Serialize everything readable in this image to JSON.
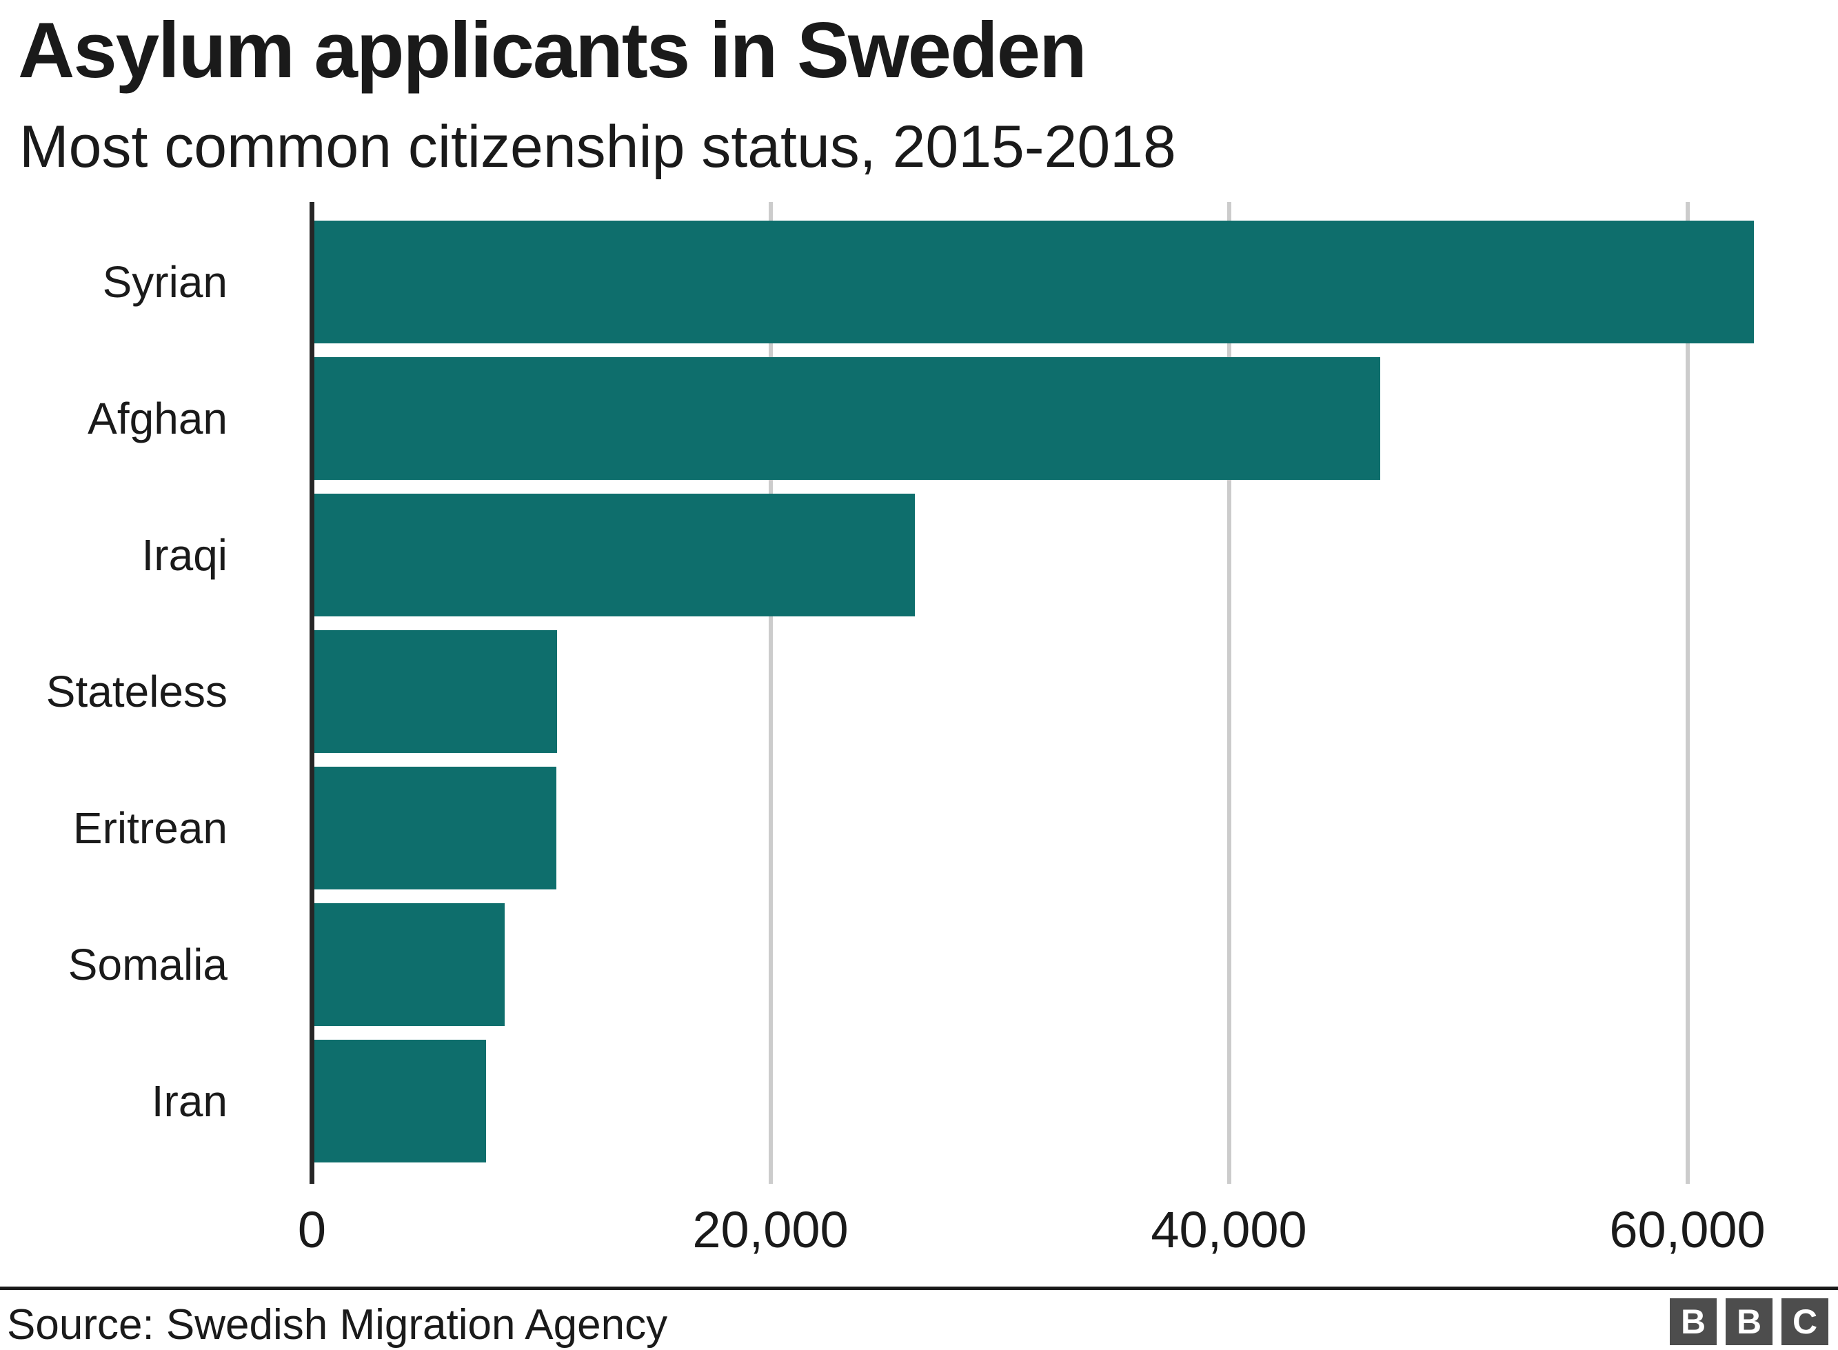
{
  "header": {
    "title": "Asylum applicants in Sweden",
    "subtitle": "Most common citizenship status, 2015-2018"
  },
  "chart_data": {
    "type": "bar",
    "orientation": "horizontal",
    "title": "Asylum applicants in Sweden",
    "subtitle": "Most common citizenship status, 2015-2018",
    "categories": [
      "Syrian",
      "Afghan",
      "Iraqi",
      "Stateless",
      "Eritrean",
      "Somalia",
      "Iran"
    ],
    "values": [
      62800,
      46500,
      26200,
      10600,
      10550,
      8300,
      7500
    ],
    "xlim": [
      0,
      66500
    ],
    "x_ticks": [
      {
        "value": 0,
        "label": "0"
      },
      {
        "value": 20000,
        "label": "20,000"
      },
      {
        "value": 40000,
        "label": "40,000"
      },
      {
        "value": 60000,
        "label": "60,000"
      }
    ],
    "grid": "vertical gridlines, drawn behind bars",
    "legend": "none",
    "bar_color": "#0e6e6c",
    "source": "Source: Swedish Migration Agency"
  },
  "footer": {
    "source": "Source: Swedish Migration Agency",
    "logo_letters": [
      "B",
      "B",
      "C"
    ]
  },
  "colors": {
    "bar": "#0e6e6c",
    "gridline": "#cccccc",
    "axis": "#262626",
    "text": "#1a1a1a",
    "divider": "#1a1a1a",
    "logo_bg": "#4d4d4d",
    "logo_letter": "#ffffff",
    "background": "#ffffff"
  }
}
